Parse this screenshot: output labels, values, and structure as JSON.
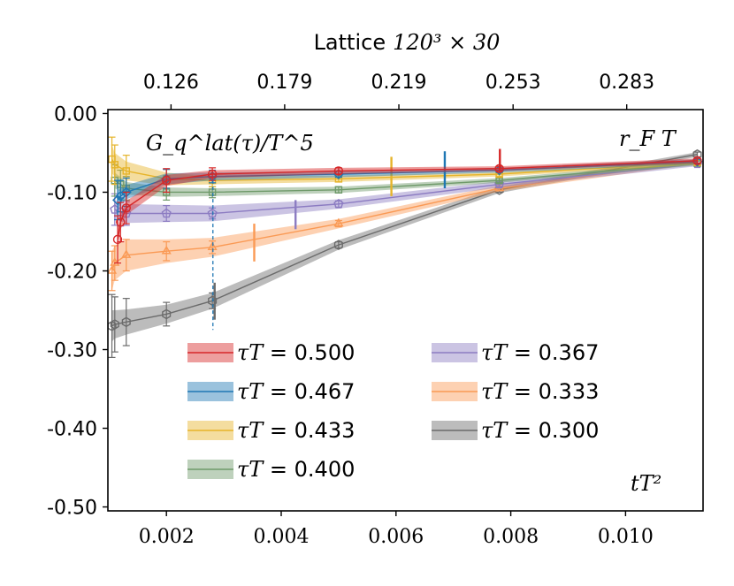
{
  "chart_data": {
    "type": "line",
    "top_axis_title_text": "Lattice",
    "top_axis_title_math": "120³ × 30",
    "annotation_top_left": "G_q^lat(τ)/T^5",
    "annotation_top_right": "r_F T",
    "xlabel": "tT²",
    "xlim": [
      0.00098,
      0.01135
    ],
    "ylim": [
      -0.505,
      0.005
    ],
    "x_ticks": [
      {
        "value": 0.002,
        "label": "0.002"
      },
      {
        "value": 0.004,
        "label": "0.004"
      },
      {
        "value": 0.006,
        "label": "0.006"
      },
      {
        "value": 0.008,
        "label": "0.008"
      },
      {
        "value": 0.01,
        "label": "0.010"
      }
    ],
    "y_ticks": [
      {
        "value": 0.0,
        "label": "0.00"
      },
      {
        "value": -0.1,
        "label": "-0.10"
      },
      {
        "value": -0.2,
        "label": "-0.20"
      },
      {
        "value": -0.3,
        "label": "-0.30"
      },
      {
        "value": -0.4,
        "label": "-0.40"
      },
      {
        "value": -0.5,
        "label": "-0.50"
      }
    ],
    "top_ticks": [
      {
        "x": 0.00208,
        "label": "0.126"
      },
      {
        "x": 0.00406,
        "label": "0.179"
      },
      {
        "x": 0.00605,
        "label": "0.219"
      },
      {
        "x": 0.00804,
        "label": "0.253"
      },
      {
        "x": 0.01002,
        "label": "0.283"
      }
    ],
    "vline": {
      "x": 0.00281,
      "y_top": -0.085,
      "y_bottom": -0.275,
      "color": "#1f77b4"
    },
    "series": [
      {
        "name": "τT = 0.500",
        "color": "#d62728",
        "x": [
          0.00115,
          0.0012,
          0.0013,
          0.002,
          0.0028,
          0.005,
          0.0078,
          0.01125
        ],
        "y": [
          -0.16,
          -0.138,
          -0.12,
          -0.085,
          -0.077,
          -0.073,
          -0.07,
          -0.06
        ],
        "err": [
          0.03,
          0.025,
          0.02,
          0.015,
          0.008,
          0.004,
          0.003,
          0.003
        ],
        "band_width": [
          0.012,
          0.01,
          0.009,
          0.007,
          0.005,
          0.004,
          0.003,
          0.003
        ],
        "marker": "circle",
        "extra_bar": {
          "x": 0.00781,
          "y_top": -0.045,
          "y_bottom": -0.073
        }
      },
      {
        "name": "τT = 0.467",
        "color": "#1f77b4",
        "x": [
          0.00115,
          0.0012,
          0.0013,
          0.002,
          0.0028,
          0.005,
          0.0078,
          0.01125
        ],
        "y": [
          -0.11,
          -0.105,
          -0.1,
          -0.083,
          -0.08,
          -0.077,
          -0.072,
          -0.061
        ],
        "err": [
          0.025,
          0.02,
          0.018,
          0.012,
          0.008,
          0.004,
          0.003,
          0.003
        ],
        "band_width": [
          0.012,
          0.01,
          0.009,
          0.007,
          0.005,
          0.004,
          0.003,
          0.003
        ],
        "marker": "diamond",
        "extra_bar": {
          "x": 0.00685,
          "y_top": -0.048,
          "y_bottom": -0.095
        }
      },
      {
        "name": "τT = 0.433",
        "color": "#e6b42a",
        "x": [
          0.00105,
          0.0011,
          0.0013,
          0.002,
          0.0028,
          0.005,
          0.0078,
          0.01125
        ],
        "y": [
          -0.058,
          -0.065,
          -0.073,
          -0.083,
          -0.085,
          -0.083,
          -0.077,
          -0.062
        ],
        "err": [
          0.028,
          0.025,
          0.02,
          0.012,
          0.008,
          0.004,
          0.003,
          0.003
        ],
        "band_width": [
          0.018,
          0.015,
          0.012,
          0.008,
          0.005,
          0.004,
          0.003,
          0.003
        ],
        "marker": "square",
        "extra_bar": {
          "x": 0.00592,
          "y_top": -0.055,
          "y_bottom": -0.105
        }
      },
      {
        "name": "τT = 0.400",
        "color": "#6f9a6a",
        "x": [
          0.0011,
          0.0012,
          0.0013,
          0.002,
          0.0028,
          0.005,
          0.0078,
          0.01125
        ],
        "y": [
          -0.085,
          -0.09,
          -0.095,
          -0.1,
          -0.1,
          -0.097,
          -0.085,
          -0.063
        ],
        "err": [
          0.02,
          0.018,
          0.015,
          0.01,
          0.007,
          0.004,
          0.003,
          0.003
        ],
        "band_width": [
          0.01,
          0.009,
          0.008,
          0.006,
          0.005,
          0.004,
          0.003,
          0.003
        ],
        "marker": "square"
      },
      {
        "name": "τT = 0.367",
        "color": "#8c7cc2",
        "x": [
          0.0011,
          0.0012,
          0.0013,
          0.002,
          0.0028,
          0.005,
          0.0078,
          0.01125
        ],
        "y": [
          -0.122,
          -0.125,
          -0.127,
          -0.127,
          -0.127,
          -0.115,
          -0.09,
          -0.064
        ],
        "err": [
          0.02,
          0.018,
          0.015,
          0.01,
          0.007,
          0.004,
          0.003,
          0.003
        ],
        "band_width": [
          0.012,
          0.012,
          0.012,
          0.011,
          0.01,
          0.006,
          0.004,
          0.003
        ],
        "marker": "pentagon",
        "extra_bar": {
          "x": 0.00425,
          "y_top": -0.11,
          "y_bottom": -0.147
        }
      },
      {
        "name": "τT = 0.333",
        "color": "#fa9a55",
        "x": [
          0.00105,
          0.0011,
          0.0013,
          0.002,
          0.0028,
          0.005,
          0.0078,
          0.01125
        ],
        "y": [
          -0.2,
          -0.19,
          -0.18,
          -0.175,
          -0.17,
          -0.14,
          -0.095,
          -0.061
        ],
        "err": [
          0.025,
          0.022,
          0.02,
          0.012,
          0.008,
          0.004,
          0.003,
          0.003
        ],
        "band_width": [
          0.025,
          0.022,
          0.02,
          0.015,
          0.012,
          0.006,
          0.004,
          0.003
        ],
        "marker": "triangle",
        "extra_bar": {
          "x": 0.00353,
          "y_top": -0.14,
          "y_bottom": -0.188
        }
      },
      {
        "name": "τT = 0.300",
        "color": "#6b6b6b",
        "x": [
          0.00105,
          0.0011,
          0.0013,
          0.002,
          0.0028,
          0.005,
          0.0078,
          0.01125
        ],
        "y": [
          -0.27,
          -0.268,
          -0.265,
          -0.255,
          -0.238,
          -0.167,
          -0.097,
          -0.052
        ],
        "err": [
          0.04,
          0.035,
          0.03,
          0.015,
          0.01,
          0.004,
          0.003,
          0.003
        ],
        "band_width": [
          0.02,
          0.018,
          0.016,
          0.012,
          0.01,
          0.006,
          0.004,
          0.003
        ],
        "marker": "hexagon",
        "extra_bar": {
          "x": 0.00284,
          "y_top": -0.215,
          "y_bottom": -0.262
        }
      }
    ],
    "legend": {
      "placement": "lower-left, two columns",
      "columns": [
        [
          "τT = 0.500",
          "τT = 0.467",
          "τT = 0.433",
          "τT = 0.400"
        ],
        [
          "τT = 0.367",
          "τT = 0.333",
          "τT = 0.300"
        ]
      ]
    }
  }
}
